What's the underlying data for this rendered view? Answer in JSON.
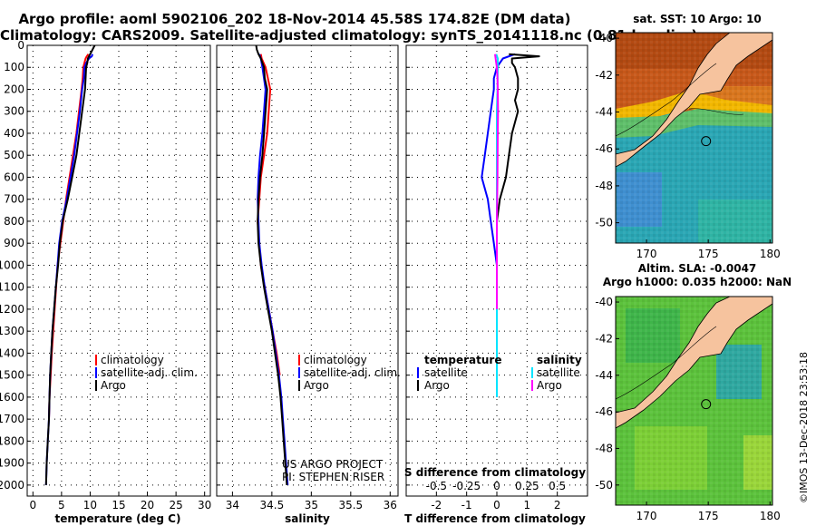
{
  "title": {
    "line1": "Argo profile: aoml 5902106_202 18-Nov-2014 45.58S 174.82E (DM data)",
    "line2": "Climatology: CARS2009. Satellite-adjusted climatology: synTS_20141118.nc (0.81d earlier)"
  },
  "colors": {
    "climatology": "#ff0000",
    "satellite": "#0000ff",
    "argo": "#000000",
    "sat_salinity": "#00e5ff",
    "argo_salinity": "#ff00ff",
    "land": "#f6c39e"
  },
  "credits": {
    "project": "US ARGO PROJECT",
    "pi": "PI: STEPHEN RISER",
    "imos": "©IMOS 13-Dec-2018 23:53:18"
  },
  "chart_data": [
    {
      "type": "line",
      "name": "temperature-profile",
      "xlabel": "temperature (deg C)",
      "ylabel": "depth (m)",
      "xlim": [
        -1,
        31
      ],
      "ylim": [
        2050,
        0
      ],
      "xticks": [
        0,
        5,
        10,
        15,
        20,
        25,
        30
      ],
      "yticks": [
        0,
        100,
        200,
        300,
        400,
        500,
        600,
        700,
        800,
        900,
        1000,
        1100,
        1200,
        1300,
        1400,
        1500,
        1600,
        1700,
        1800,
        1900,
        2000
      ],
      "ytick_labels": [
        "0",
        "100",
        "200",
        "300",
        "400",
        "500",
        "600",
        "700",
        "800",
        "900",
        "1000",
        "1100",
        "1200",
        "1300",
        "1400",
        "1500",
        "1600",
        "1700",
        "1800",
        "1900",
        "2000"
      ],
      "legend": [
        "climatology",
        "satellite-adj. clim.",
        "Argo"
      ],
      "series": [
        {
          "name": "climatology",
          "depth": [
            40,
            50,
            60,
            80,
            100,
            150,
            200,
            400,
            700,
            1000,
            1200,
            1400,
            1500,
            1600,
            1700
          ],
          "values": [
            9.7,
            9.4,
            9.2,
            9.0,
            8.8,
            8.7,
            8.5,
            7.6,
            5.8,
            4.3,
            3.8,
            3.3,
            3.1,
            2.9,
            2.8
          ]
        },
        {
          "name": "satellite-adj. clim.",
          "depth": [
            40,
            50,
            60,
            80,
            100,
            150,
            200,
            300,
            500,
            700,
            800,
            900,
            1000,
            1100,
            1200,
            1300,
            1400,
            1500,
            1600,
            1700,
            1800,
            1900,
            2000
          ],
          "values": [
            10.4,
            10.3,
            9.8,
            9.3,
            9.0,
            8.9,
            8.6,
            8.2,
            7.2,
            5.9,
            5.1,
            4.6,
            4.3,
            4.0,
            3.7,
            3.4,
            3.2,
            3.0,
            2.9,
            2.8,
            2.6,
            2.4,
            2.3
          ]
        },
        {
          "name": "Argo",
          "depth": [
            0,
            10,
            20,
            30,
            40,
            50,
            60,
            80,
            100,
            150,
            200,
            300,
            500,
            700,
            800,
            900,
            1000,
            1100,
            1200,
            1300,
            1400,
            1500,
            1600,
            1700,
            1800,
            1900,
            2000
          ],
          "values": [
            10.8,
            10.6,
            10.4,
            10.2,
            10.0,
            9.8,
            9.6,
            9.5,
            9.3,
            9.2,
            9.1,
            8.6,
            7.6,
            6.1,
            5.2,
            4.7,
            4.4,
            4.0,
            3.7,
            3.4,
            3.2,
            3.0,
            2.9,
            2.8,
            2.6,
            2.4,
            2.3
          ]
        }
      ]
    },
    {
      "type": "line",
      "name": "salinity-profile",
      "xlabel": "salinity",
      "ylabel": "depth (m)",
      "xlim": [
        33.8,
        36.1
      ],
      "ylim": [
        2050,
        0
      ],
      "xticks": [
        34,
        34.5,
        35,
        35.5,
        36
      ],
      "legend": [
        "climatology",
        "satellite-adj. clim.",
        "Argo"
      ],
      "series": [
        {
          "name": "climatology",
          "depth": [
            40,
            60,
            100,
            200,
            300,
            400,
            500,
            600,
            800,
            1000,
            1200,
            1400,
            1500
          ],
          "values": [
            34.36,
            34.37,
            34.42,
            34.48,
            34.46,
            34.44,
            34.4,
            34.36,
            34.32,
            34.36,
            34.46,
            34.56,
            34.6
          ]
        },
        {
          "name": "satellite-adj. clim.",
          "depth": [
            40,
            60,
            100,
            200,
            300,
            400,
            500,
            600,
            700,
            800,
            900,
            1000,
            1100,
            1200,
            1300,
            1400,
            1500,
            1600,
            1700,
            1800,
            1900,
            2000
          ],
          "values": [
            34.34,
            34.36,
            34.38,
            34.42,
            34.4,
            34.38,
            34.35,
            34.33,
            34.32,
            34.33,
            34.34,
            34.37,
            34.41,
            34.46,
            34.51,
            34.55,
            34.59,
            34.62,
            34.64,
            34.66,
            34.68,
            34.7
          ]
        },
        {
          "name": "Argo",
          "depth": [
            0,
            20,
            40,
            60,
            100,
            150,
            200,
            300,
            400,
            500,
            600,
            700,
            800,
            900,
            1000,
            1100,
            1200,
            1300,
            1400,
            1500,
            1600,
            1700,
            1800,
            1900,
            2000
          ],
          "values": [
            34.3,
            34.31,
            34.33,
            34.36,
            34.4,
            34.41,
            34.44,
            34.42,
            34.4,
            34.38,
            34.35,
            34.33,
            34.32,
            34.33,
            34.36,
            34.4,
            34.45,
            34.5,
            34.54,
            34.58,
            34.61,
            34.63,
            34.65,
            34.67,
            34.69
          ]
        }
      ]
    },
    {
      "type": "line",
      "name": "difference-profile",
      "xlabel": "T difference from climatology",
      "xlabel_top": "S difference from climatology",
      "xlim": [
        -3,
        3
      ],
      "ylim": [
        2050,
        0
      ],
      "xticks": [
        -2,
        -1,
        0,
        1,
        2
      ],
      "xticks_salinity": [
        -0.5,
        -0.25,
        0,
        0.25,
        0.5
      ],
      "xtick_labels_salinity": [
        "-0.5",
        "-0.25",
        "0",
        "0.25",
        "0.5"
      ],
      "legend": {
        "temperature_title": "temperature",
        "salinity_title": "salinity",
        "satellite": "satellite",
        "argo": "Argo"
      },
      "series": [
        {
          "name": "T satellite",
          "depth": [
            40,
            60,
            100,
            150,
            200,
            300,
            400,
            500,
            600,
            700,
            800,
            900,
            1000,
            1100,
            1200,
            1300,
            1400,
            1500,
            1600
          ],
          "values": [
            0.6,
            0.2,
            0.0,
            -0.1,
            -0.1,
            -0.2,
            -0.3,
            -0.4,
            -0.5,
            -0.3,
            -0.2,
            -0.1,
            0.0,
            0.0,
            0.0,
            0.0,
            0.0,
            0.0,
            0.0
          ]
        },
        {
          "name": "T Argo",
          "depth": [
            40,
            50,
            60,
            80,
            100,
            150,
            200,
            250,
            300,
            400,
            500,
            600,
            700,
            800,
            900,
            1000,
            1100,
            1200
          ],
          "values": [
            0.4,
            1.4,
            0.5,
            0.5,
            0.6,
            0.7,
            0.7,
            0.6,
            0.7,
            0.5,
            0.4,
            0.3,
            0.1,
            0.0,
            0.0,
            0.0,
            0.0,
            0.0
          ]
        },
        {
          "name": "S satellite",
          "depth": [
            40,
            60,
            100,
            200,
            300,
            400,
            600,
            800,
            1000,
            1200,
            1400,
            1600
          ],
          "values": [
            -0.02,
            0.03,
            0.03,
            0.02,
            0.0,
            0.0,
            0.0,
            0.0,
            0.0,
            0.0,
            0.0,
            0.0
          ]
        },
        {
          "name": "S Argo",
          "depth": [
            40,
            80,
            100,
            150,
            200,
            300,
            400,
            600,
            800,
            1000,
            1200
          ],
          "values": [
            -0.06,
            -0.02,
            0.0,
            0.02,
            0.03,
            0.04,
            0.03,
            0.02,
            0.0,
            0.0,
            0.0
          ]
        }
      ]
    },
    {
      "type": "heatmap",
      "name": "sst-map",
      "title": "sat. SST: 10 Argo: 10",
      "xlim": [
        167.5,
        180.2
      ],
      "ylim": [
        -51.1,
        -39.7
      ],
      "xticks": [
        170,
        175,
        180
      ],
      "yticks": [
        -40,
        -42,
        -44,
        -46,
        -48,
        -50
      ],
      "argo_position": [
        174.82,
        -45.58
      ]
    },
    {
      "type": "heatmap",
      "name": "sla-map",
      "title_line1": "Altim. SLA: -0.0047",
      "title_line2": "Argo h1000: 0.035 h2000: NaN",
      "xlim": [
        167.5,
        180.2
      ],
      "ylim": [
        -51.1,
        -39.7
      ],
      "xticks": [
        170,
        175,
        180
      ],
      "yticks": [
        -40,
        -42,
        -44,
        -46,
        -48,
        -50
      ],
      "argo_position": [
        174.82,
        -45.58
      ]
    }
  ]
}
